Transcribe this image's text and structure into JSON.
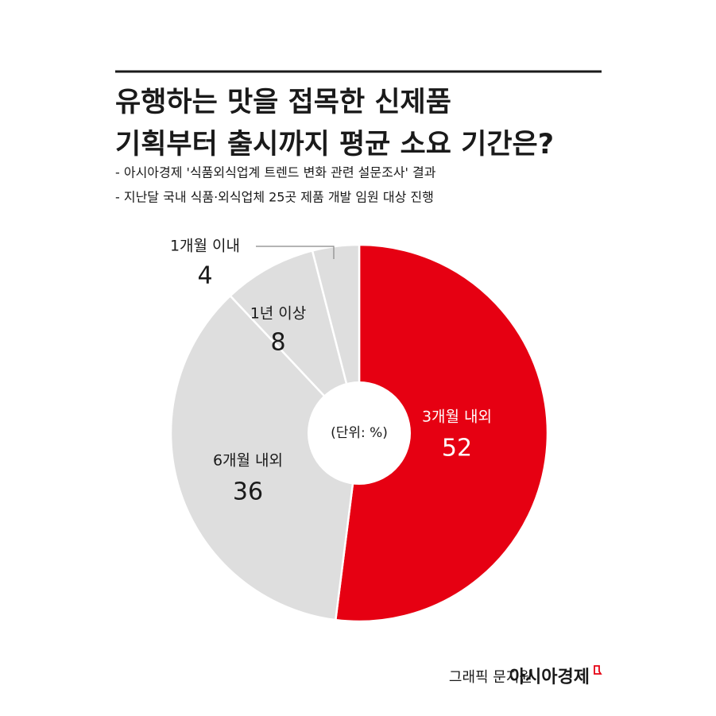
{
  "chart_data": {
    "type": "pie",
    "title": [
      "유행하는 맛을 접목한 신제품",
      "기획부터 출시까지 평균 소요 기간은?"
    ],
    "subtitle": [
      "- 아시아경제 '식품외식업계 트렌드 변화 관련 설문조사' 결과",
      "- 지난달 국내 식품·외식업체 25곳 제품 개발 임원 대상 진행"
    ],
    "unit_label": "(단위: %)",
    "categories": [
      "3개월 내외",
      "6개월 내외",
      "1년 이상",
      "1개월 이내"
    ],
    "values": [
      52,
      36,
      8,
      4
    ],
    "colors": [
      "#e60012",
      "#dedede",
      "#dedede",
      "#dedede"
    ],
    "credit": "그래픽 문지원",
    "brand": "아시아경제"
  }
}
